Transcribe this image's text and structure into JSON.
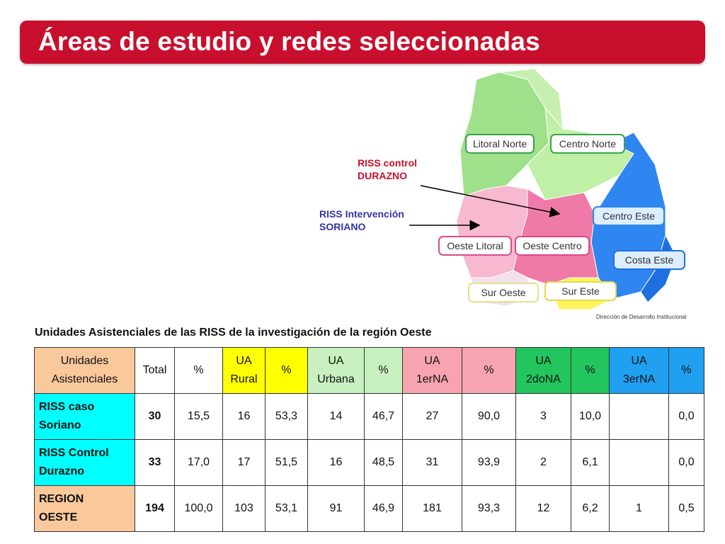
{
  "title": "Áreas de estudio y redes seleccionadas",
  "map": {
    "regions": [
      "Litoral Norte",
      "Centro Norte",
      "Centro Este",
      "Oeste Litoral",
      "Oeste Centro",
      "Costa Este",
      "Sur Oeste",
      "Sur Este"
    ],
    "credit": "Dirección de Desarrollo Institucional",
    "annotation_control": [
      "RISS control",
      "DURAZNO"
    ],
    "annotation_intervention": [
      "RISS Intervención",
      "SORIANO"
    ]
  },
  "caption": "Unidades Asistenciales de las RISS de la investigación de la región Oeste",
  "table": {
    "headers": [
      [
        "Unidades",
        "Asistenciales"
      ],
      [
        "Total"
      ],
      [
        "%"
      ],
      [
        "UA",
        "Rural"
      ],
      [
        "%"
      ],
      [
        "UA",
        "Urbana"
      ],
      [
        "%"
      ],
      [
        "UA",
        "1erNA"
      ],
      [
        "%"
      ],
      [
        "UA",
        "2doNA"
      ],
      [
        "%"
      ],
      [
        "UA",
        "3erNA"
      ],
      [
        "%"
      ]
    ],
    "rows": [
      {
        "label": [
          "RISS caso",
          "Soriano"
        ],
        "cells": [
          "30",
          "15,5",
          "16",
          "53,3",
          "14",
          "46,7",
          "27",
          "90,0",
          "3",
          "10,0",
          "",
          "0,0"
        ]
      },
      {
        "label": [
          "RISS Control",
          "Durazno"
        ],
        "cells": [
          "33",
          "17,0",
          "17",
          "51,5",
          "16",
          "48,5",
          "31",
          "93,9",
          "2",
          "6,1",
          "",
          "0,0"
        ]
      },
      {
        "label": [
          "REGION",
          "OESTE"
        ],
        "cells": [
          "194",
          "100,0",
          "103",
          "53,1",
          "91",
          "46,9",
          "181",
          "93,3",
          "12",
          "6,2",
          "1",
          "0,5"
        ]
      }
    ]
  },
  "colors": {
    "title_bg": "#c8102e",
    "header_unidades": "#f9c89b",
    "header_rural": "#ffff00",
    "header_urbana": "#c8f0c0",
    "header_1erNA": "#f7a3b0",
    "header_2doNA": "#22c55e",
    "header_3erNA": "#1fa0f0",
    "row_riss": "#00ffff",
    "row_region": "#f9c89b"
  }
}
